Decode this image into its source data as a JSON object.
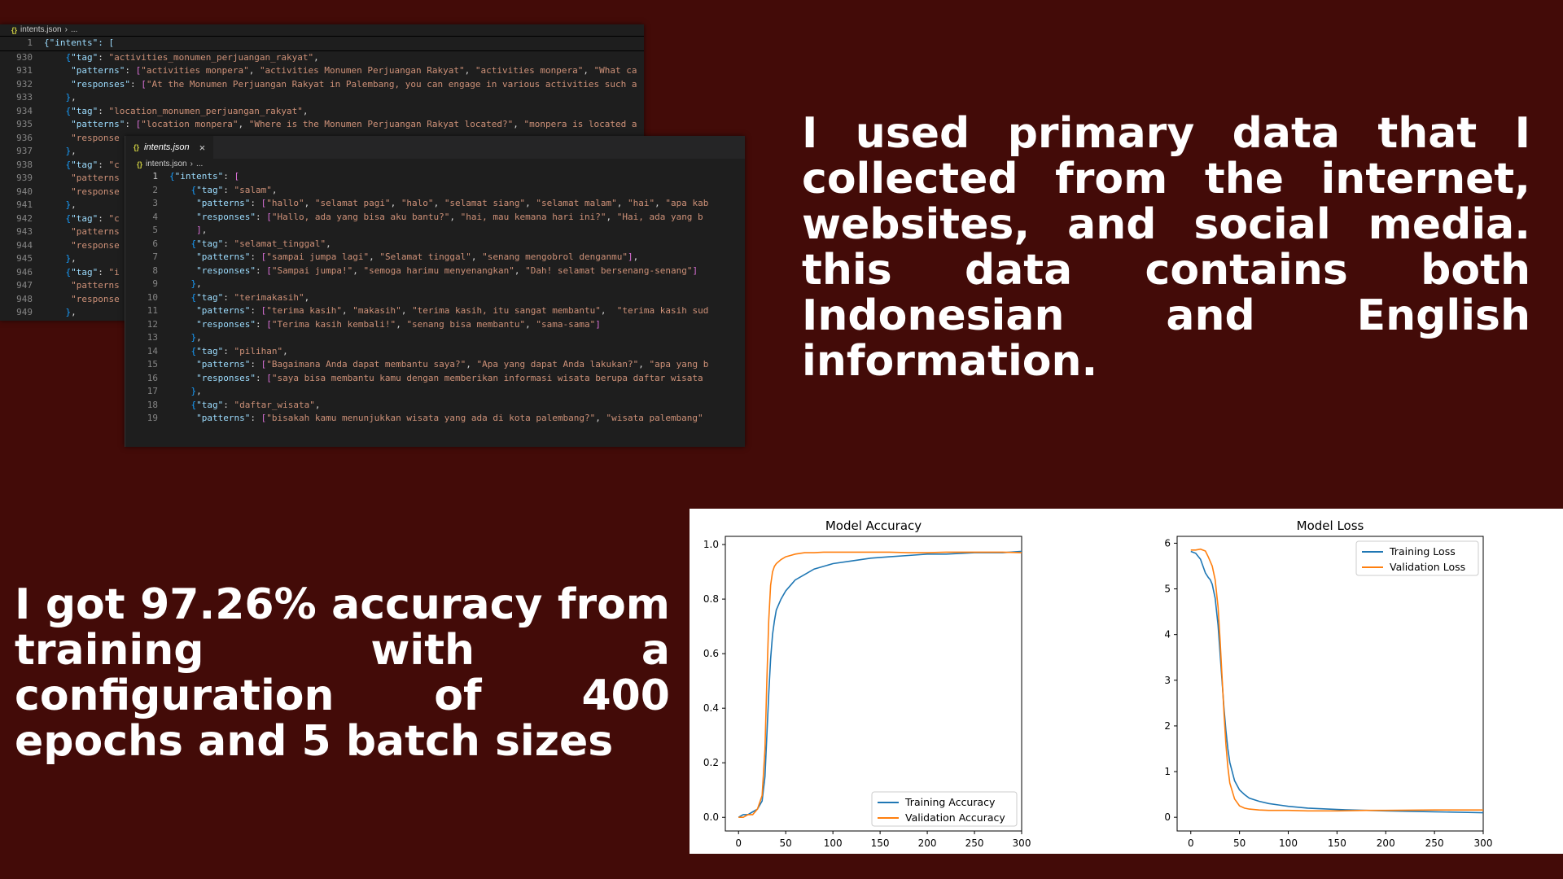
{
  "editor_back": {
    "breadcrumb_file": "intents.json",
    "breadcrumb_rest": "...",
    "first_line": {
      "num": "1",
      "content": "{\"intents\": ["
    },
    "lines": [
      {
        "num": "930",
        "content": "    {\"tag\": \"activities_monumen_perjuangan_rakyat\","
      },
      {
        "num": "931",
        "content": "     \"patterns\": [\"activities monpera\", \"activities Monumen Perjuangan Rakyat\", \"activities monpera\", \"What ca"
      },
      {
        "num": "932",
        "content": "     \"responses\": [\"At the Monumen Perjuangan Rakyat in Palembang, you can engage in various activities such a"
      },
      {
        "num": "933",
        "content": "    },"
      },
      {
        "num": "934",
        "content": "    {\"tag\": \"location_monumen_perjuangan_rakyat\","
      },
      {
        "num": "935",
        "content": "     \"patterns\": [\"location monpera\", \"Where is the Monumen Perjuangan Rakyat located?\", \"monpera is located a"
      },
      {
        "num": "936",
        "content": "     \"response"
      },
      {
        "num": "937",
        "content": "    },"
      },
      {
        "num": "938",
        "content": "    {\"tag\": \"c"
      },
      {
        "num": "939",
        "content": "     \"patterns"
      },
      {
        "num": "940",
        "content": "     \"response"
      },
      {
        "num": "941",
        "content": "    },"
      },
      {
        "num": "942",
        "content": "    {\"tag\": \"c"
      },
      {
        "num": "943",
        "content": "     \"patterns"
      },
      {
        "num": "944",
        "content": "     \"response"
      },
      {
        "num": "945",
        "content": "    },"
      },
      {
        "num": "946",
        "content": "    {\"tag\": \"i"
      },
      {
        "num": "947",
        "content": "     \"patterns"
      },
      {
        "num": "948",
        "content": "     \"response"
      },
      {
        "num": "949",
        "content": "    },"
      }
    ]
  },
  "editor_front": {
    "tab_label": "intents.json",
    "tab_close": "×",
    "breadcrumb_file": "intents.json",
    "breadcrumb_rest": "...",
    "lines": [
      {
        "num": "1",
        "content": "{\"intents\": ["
      },
      {
        "num": "2",
        "content": "    {\"tag\": \"salam\","
      },
      {
        "num": "3",
        "content": "     \"patterns\": [\"hallo\", \"selamat pagi\", \"halo\", \"selamat siang\", \"selamat malam\", \"hai\", \"apa kab"
      },
      {
        "num": "4",
        "content": "     \"responses\": [\"Hallo, ada yang bisa aku bantu?\", \"hai, mau kemana hari ini?\", \"Hai, ada yang b"
      },
      {
        "num": "5",
        "content": "     ],"
      },
      {
        "num": "6",
        "content": "    {\"tag\": \"selamat_tinggal\","
      },
      {
        "num": "7",
        "content": "     \"patterns\": [\"sampai jumpa lagi\", \"Selamat tinggal\", \"senang mengobrol denganmu\"],"
      },
      {
        "num": "8",
        "content": "     \"responses\": [\"Sampai jumpa!\", \"semoga harimu menyenangkan\", \"Dah! selamat bersenang-senang\"]"
      },
      {
        "num": "9",
        "content": "    },"
      },
      {
        "num": "10",
        "content": "    {\"tag\": \"terimakasih\","
      },
      {
        "num": "11",
        "content": "     \"patterns\": [\"terima kasih\", \"makasih\", \"terima kasih, itu sangat membantu\",  \"terima kasih sud"
      },
      {
        "num": "12",
        "content": "     \"responses\": [\"Terima kasih kembali!\", \"senang bisa membantu\", \"sama-sama\"]"
      },
      {
        "num": "13",
        "content": "    },"
      },
      {
        "num": "14",
        "content": "    {\"tag\": \"pilihan\","
      },
      {
        "num": "15",
        "content": "     \"patterns\": [\"Bagaimana Anda dapat membantu saya?\", \"Apa yang dapat Anda lakukan?\", \"apa yang b"
      },
      {
        "num": "16",
        "content": "     \"responses\": [\"saya bisa membantu kamu dengan memberikan informasi wisata berupa daftar wisata"
      },
      {
        "num": "17",
        "content": "    },"
      },
      {
        "num": "18",
        "content": "    {\"tag\": \"daftar_wisata\","
      },
      {
        "num": "19",
        "content": "     \"patterns\": [\"bisakah kamu menunjukkan wisata yang ada di kota palembang?\", \"wisata palembang\""
      }
    ]
  },
  "text_top": "I used primary data that I collected from the internet, websites, and social media. this data contains both Indonesian and English information.",
  "text_bottom": "I got 97.26% accuracy from training with a configuration of 400 epochs and 5 batch sizes",
  "colors": {
    "background": "#430b08",
    "training": "#1f77b4",
    "validation": "#ff7f0e"
  },
  "chart_data": [
    {
      "type": "line",
      "title": "Model Accuracy",
      "xlabel": "",
      "ylabel": "",
      "xlim": [
        0,
        300
      ],
      "ylim": [
        -0.05,
        1.03
      ],
      "xticks": [
        0,
        50,
        100,
        150,
        200,
        250,
        300
      ],
      "yticks": [
        0.0,
        0.2,
        0.4,
        0.6,
        0.8,
        1.0
      ],
      "ytick_labels": [
        "0.0",
        "0.2",
        "0.4",
        "0.6",
        "0.8",
        "1.0"
      ],
      "legend_position": "lower-right",
      "series": [
        {
          "name": "Training Accuracy",
          "color": "#1f77b4",
          "x": [
            0,
            5,
            10,
            15,
            20,
            25,
            28,
            30,
            32,
            34,
            36,
            38,
            40,
            45,
            50,
            55,
            60,
            70,
            80,
            90,
            100,
            120,
            140,
            160,
            180,
            200,
            220,
            250,
            280,
            300
          ],
          "y": [
            0.0,
            0.01,
            0.01,
            0.02,
            0.03,
            0.06,
            0.15,
            0.3,
            0.45,
            0.58,
            0.67,
            0.72,
            0.76,
            0.8,
            0.83,
            0.85,
            0.87,
            0.89,
            0.91,
            0.92,
            0.93,
            0.94,
            0.95,
            0.955,
            0.96,
            0.965,
            0.965,
            0.97,
            0.97,
            0.975
          ]
        },
        {
          "name": "Validation Accuracy",
          "color": "#ff7f0e",
          "x": [
            0,
            5,
            10,
            15,
            20,
            25,
            28,
            30,
            32,
            34,
            36,
            38,
            40,
            45,
            50,
            55,
            60,
            70,
            80,
            90,
            100,
            120,
            140,
            160,
            180,
            200,
            220,
            250,
            280,
            300
          ],
          "y": [
            0.0,
            0.0,
            0.01,
            0.01,
            0.03,
            0.08,
            0.25,
            0.5,
            0.72,
            0.85,
            0.9,
            0.92,
            0.93,
            0.945,
            0.955,
            0.96,
            0.965,
            0.97,
            0.97,
            0.972,
            0.972,
            0.972,
            0.972,
            0.972,
            0.97,
            0.97,
            0.972,
            0.972,
            0.972,
            0.97
          ]
        }
      ]
    },
    {
      "type": "line",
      "title": "Model Loss",
      "xlabel": "",
      "ylabel": "",
      "xlim": [
        0,
        300
      ],
      "ylim": [
        -0.3,
        6.15
      ],
      "xticks": [
        0,
        50,
        100,
        150,
        200,
        250,
        300
      ],
      "yticks": [
        0,
        1,
        2,
        3,
        4,
        5,
        6
      ],
      "ytick_labels": [
        "0",
        "1",
        "2",
        "3",
        "4",
        "5",
        "6"
      ],
      "legend_position": "upper-right",
      "series": [
        {
          "name": "Training Loss",
          "color": "#1f77b4",
          "x": [
            0,
            5,
            10,
            15,
            18,
            20,
            22,
            25,
            28,
            30,
            32,
            34,
            36,
            38,
            40,
            45,
            50,
            55,
            60,
            70,
            80,
            90,
            100,
            120,
            150,
            180,
            200,
            250,
            300
          ],
          "y": [
            5.82,
            5.78,
            5.65,
            5.35,
            5.25,
            5.2,
            5.1,
            4.8,
            4.2,
            3.6,
            3.0,
            2.4,
            1.9,
            1.5,
            1.2,
            0.8,
            0.6,
            0.5,
            0.42,
            0.35,
            0.3,
            0.27,
            0.24,
            0.2,
            0.17,
            0.15,
            0.14,
            0.12,
            0.1
          ]
        },
        {
          "name": "Validation Loss",
          "color": "#ff7f0e",
          "x": [
            0,
            5,
            10,
            15,
            18,
            20,
            22,
            25,
            28,
            30,
            32,
            34,
            36,
            38,
            40,
            45,
            50,
            55,
            60,
            70,
            80,
            90,
            100,
            120,
            150,
            180,
            200,
            250,
            300
          ],
          "y": [
            5.85,
            5.85,
            5.87,
            5.83,
            5.7,
            5.6,
            5.5,
            5.2,
            4.6,
            3.9,
            3.1,
            2.3,
            1.6,
            1.1,
            0.75,
            0.4,
            0.25,
            0.2,
            0.18,
            0.16,
            0.15,
            0.15,
            0.15,
            0.14,
            0.14,
            0.15,
            0.15,
            0.16,
            0.16
          ]
        }
      ]
    }
  ]
}
